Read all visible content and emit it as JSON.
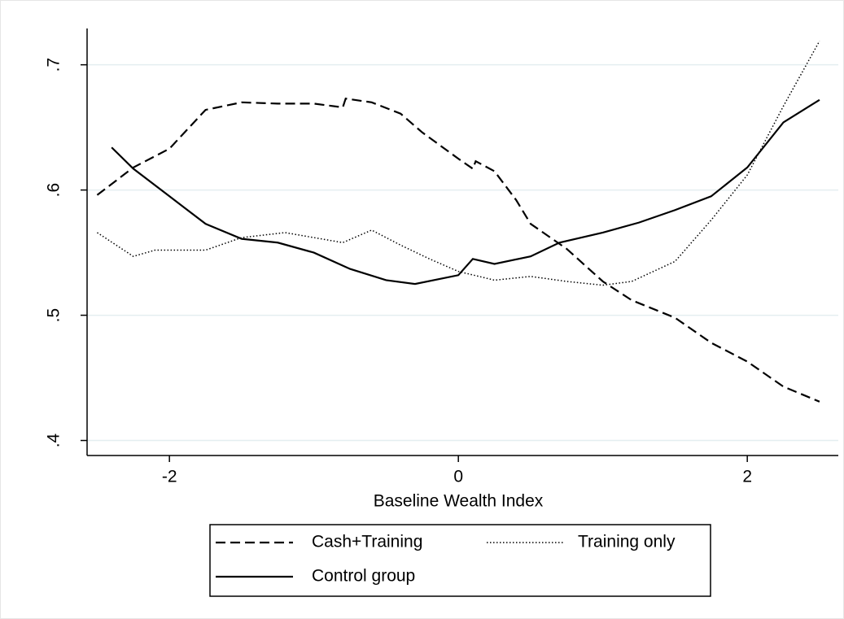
{
  "chart_data": {
    "type": "line",
    "xlabel": "Baseline Wealth Index",
    "xlim": [
      -2.57,
      2.63
    ],
    "xticks": [
      -2,
      0,
      2
    ],
    "ylim": [
      0.388,
      0.729
    ],
    "yticks": [
      {
        "value": 0.4,
        "label": ".4"
      },
      {
        "value": 0.5,
        "label": ".5"
      },
      {
        "value": 0.6,
        "label": ".6"
      },
      {
        "value": 0.7,
        "label": ".7"
      }
    ],
    "grid": true,
    "series": [
      {
        "name": "Cash+Training",
        "color": "#000000",
        "dash": "dashed",
        "x": [
          -2.5,
          -2.25,
          -2.0,
          -1.75,
          -1.5,
          -1.25,
          -1.0,
          -0.8,
          -0.78,
          -0.6,
          -0.4,
          -0.25,
          0,
          0.1,
          0.12,
          0.25,
          0.4,
          0.5,
          0.75,
          1.0,
          1.2,
          1.5,
          1.75,
          2.0,
          2.25,
          2.5
        ],
        "values": [
          0.596,
          0.618,
          0.633,
          0.664,
          0.67,
          0.669,
          0.669,
          0.666,
          0.673,
          0.67,
          0.661,
          0.646,
          0.625,
          0.617,
          0.623,
          0.615,
          0.592,
          0.573,
          0.553,
          0.527,
          0.512,
          0.498,
          0.478,
          0.463,
          0.443,
          0.431
        ]
      },
      {
        "name": "Training only",
        "color": "#000000",
        "dash": "dotted",
        "x": [
          -2.5,
          -2.25,
          -2.1,
          -1.75,
          -1.5,
          -1.2,
          -1.0,
          -0.8,
          -0.6,
          -0.4,
          -0.2,
          0,
          0.25,
          0.5,
          0.75,
          1.0,
          1.2,
          1.5,
          1.75,
          2.0,
          2.25,
          2.5
        ],
        "values": [
          0.566,
          0.547,
          0.552,
          0.552,
          0.562,
          0.566,
          0.562,
          0.558,
          0.568,
          0.556,
          0.545,
          0.535,
          0.528,
          0.531,
          0.527,
          0.524,
          0.527,
          0.543,
          0.576,
          0.612,
          0.667,
          0.719
        ]
      },
      {
        "name": "Control group",
        "color": "#000000",
        "dash": "solid",
        "x": [
          -2.4,
          -2.25,
          -2.0,
          -1.75,
          -1.5,
          -1.25,
          -1.0,
          -0.75,
          -0.5,
          -0.3,
          0,
          0.1,
          0.25,
          0.5,
          0.7,
          1.0,
          1.25,
          1.5,
          1.75,
          2.0,
          2.25,
          2.5
        ],
        "values": [
          0.634,
          0.617,
          0.595,
          0.573,
          0.561,
          0.558,
          0.55,
          0.537,
          0.528,
          0.525,
          0.532,
          0.545,
          0.541,
          0.547,
          0.558,
          0.566,
          0.574,
          0.584,
          0.595,
          0.618,
          0.654,
          0.672
        ]
      }
    ]
  }
}
